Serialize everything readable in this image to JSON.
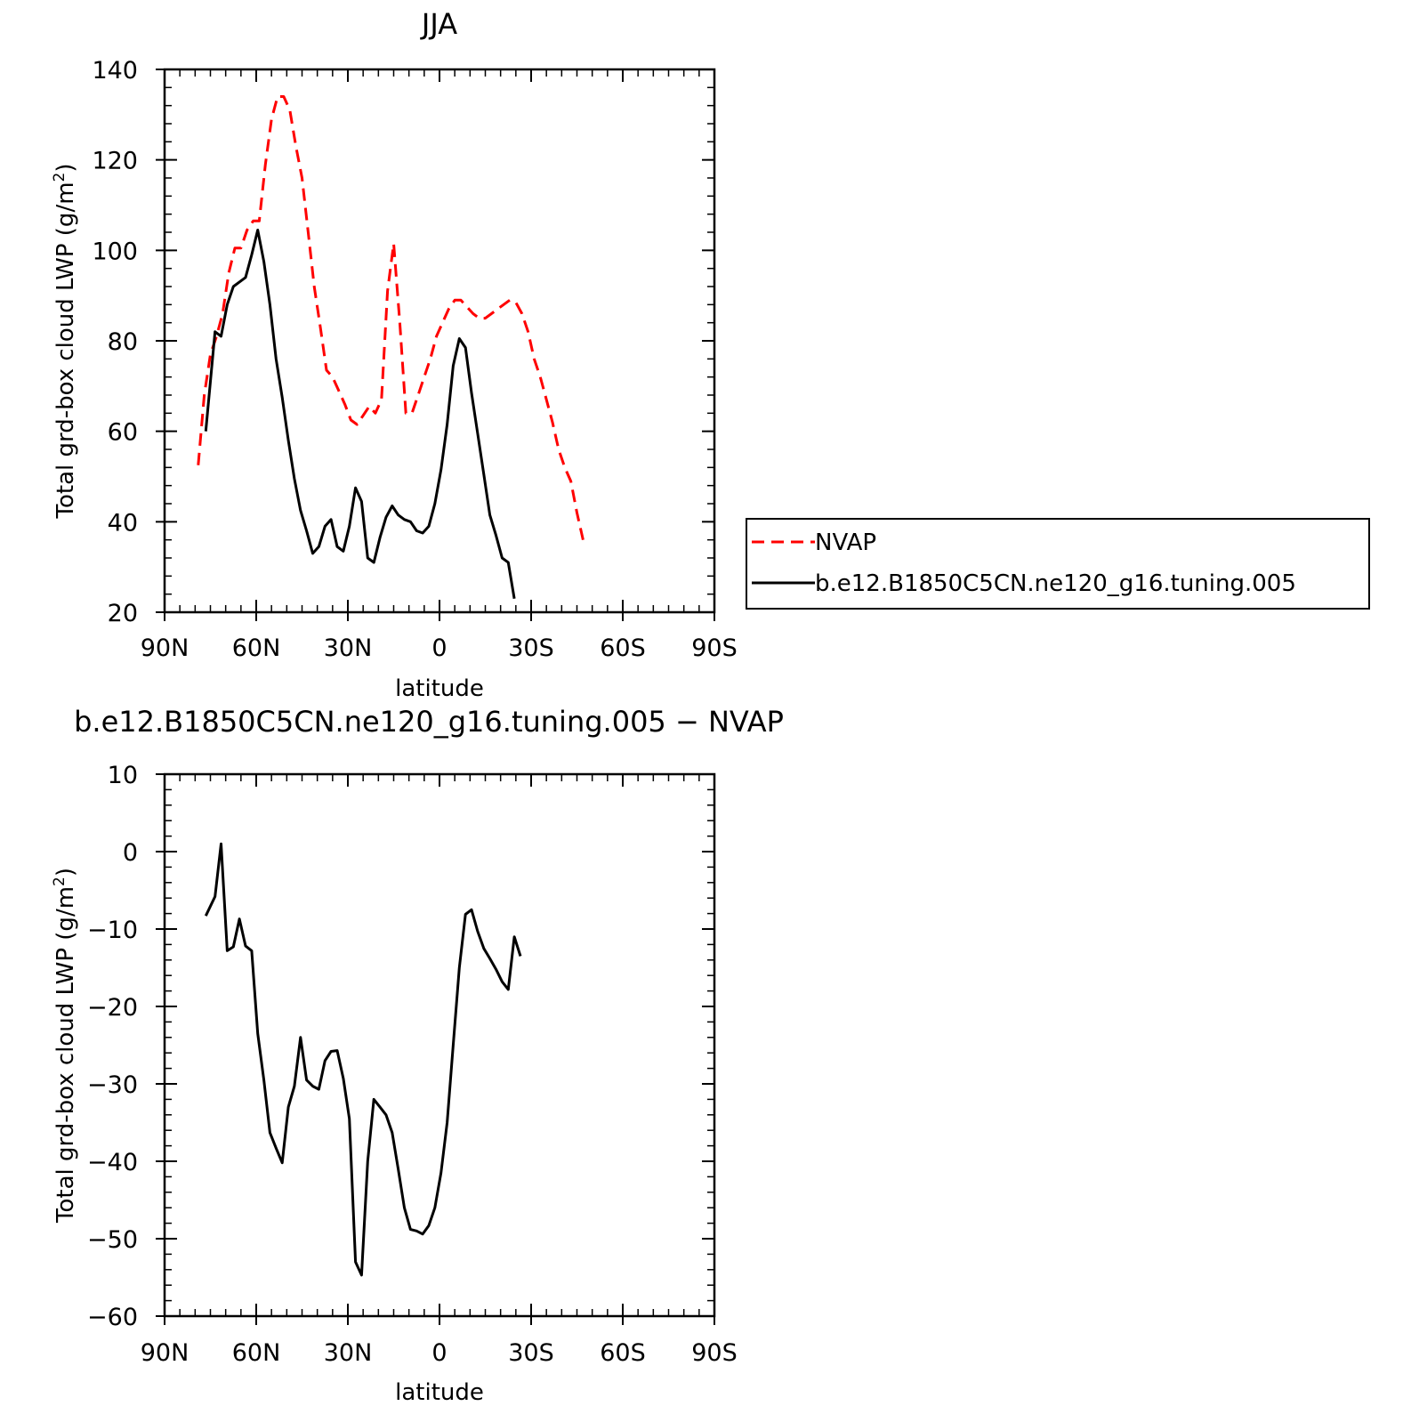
{
  "chart_data": [
    {
      "type": "line",
      "title": "JJA",
      "xlabel": "latitude",
      "ylabel": "Total grd-box cloud LWP (g/m²)",
      "ylabel_main": "Total grd-box cloud LWP (g/m",
      "ylabel_sup": "2",
      "ylabel_close": ")",
      "xlim": [
        90,
        -90
      ],
      "ylim": [
        20,
        140
      ],
      "x_ticks": [
        {
          "v": 90,
          "label": "90N"
        },
        {
          "v": 60,
          "label": "60N"
        },
        {
          "v": 30,
          "label": "30N"
        },
        {
          "v": 0,
          "label": "0"
        },
        {
          "v": -30,
          "label": "30S"
        },
        {
          "v": -60,
          "label": "60S"
        },
        {
          "v": -90,
          "label": "90S"
        }
      ],
      "y_ticks": [
        {
          "v": 20,
          "label": "20"
        },
        {
          "v": 40,
          "label": "40"
        },
        {
          "v": 60,
          "label": "60"
        },
        {
          "v": 80,
          "label": "80"
        },
        {
          "v": 100,
          "label": "100"
        },
        {
          "v": 120,
          "label": "120"
        },
        {
          "v": 140,
          "label": "140"
        }
      ],
      "grid": false,
      "legend": "right, outside plot",
      "series": [
        {
          "name": "NVAP",
          "color": "#ff0000",
          "dash": true,
          "points": [
            [
              79,
              52.5
            ],
            [
              77,
              68
            ],
            [
              75,
              77
            ],
            [
              73,
              81
            ],
            [
              71,
              86
            ],
            [
              69,
              95
            ],
            [
              67,
              100.5
            ],
            [
              65,
              100.5
            ],
            [
              63,
              104.5
            ],
            [
              61,
              106.5
            ],
            [
              59,
              106.5
            ],
            [
              57,
              119
            ],
            [
              55,
              129
            ],
            [
              53,
              134
            ],
            [
              51,
              134
            ],
            [
              49,
              131
            ],
            [
              47,
              123
            ],
            [
              45,
              116
            ],
            [
              43,
              104
            ],
            [
              41,
              92
            ],
            [
              39,
              83
            ],
            [
              37,
              73.5
            ],
            [
              35,
              72
            ],
            [
              33,
              69
            ],
            [
              31,
              66
            ],
            [
              29,
              62.5
            ],
            [
              27,
              61.5
            ],
            [
              25,
              63.5
            ],
            [
              23,
              65.5
            ],
            [
              21,
              64
            ],
            [
              19,
              67
            ],
            [
              17,
              91
            ],
            [
              15,
              101.5
            ],
            [
              13,
              84
            ],
            [
              11,
              64
            ],
            [
              9,
              64
            ],
            [
              7,
              68
            ],
            [
              5,
              72
            ],
            [
              3,
              76
            ],
            [
              1,
              81
            ],
            [
              -1,
              84
            ],
            [
              -3,
              87
            ],
            [
              -5,
              89
            ],
            [
              -7,
              89
            ],
            [
              -9,
              87.5
            ],
            [
              -11,
              86
            ],
            [
              -13,
              85
            ],
            [
              -15,
              85
            ],
            [
              -17,
              86
            ],
            [
              -19,
              87
            ],
            [
              -21,
              88
            ],
            [
              -23,
              89
            ],
            [
              -25,
              88.5
            ],
            [
              -27,
              86
            ],
            [
              -29,
              82
            ],
            [
              -31,
              76
            ],
            [
              -33,
              72
            ],
            [
              -35,
              67
            ],
            [
              -37,
              62
            ],
            [
              -39,
              56
            ],
            [
              -41,
              52
            ],
            [
              -43,
              49
            ],
            [
              -45,
              42
            ],
            [
              -47,
              36
            ]
          ]
        },
        {
          "name": "b.e12.B1850C5CN.ne120_g16.tuning.005",
          "color": "#000000",
          "dash": false,
          "points": [
            [
              76.5,
              60
            ],
            [
              73.5,
              82
            ],
            [
              71.5,
              81
            ],
            [
              69.5,
              88
            ],
            [
              67.5,
              92
            ],
            [
              65.5,
              93
            ],
            [
              63.5,
              94
            ],
            [
              61.5,
              99
            ],
            [
              59.5,
              104.5
            ],
            [
              57.5,
              97.5
            ],
            [
              55.5,
              88
            ],
            [
              53.5,
              76
            ],
            [
              51.5,
              67.5
            ],
            [
              49.5,
              58
            ],
            [
              47.5,
              49.5
            ],
            [
              45.5,
              42.5
            ],
            [
              43.5,
              38
            ],
            [
              41.5,
              33
            ],
            [
              39.5,
              34.5
            ],
            [
              37.5,
              39
            ],
            [
              35.5,
              40.5
            ],
            [
              33.5,
              34.5
            ],
            [
              31.5,
              33.5
            ],
            [
              29.5,
              39
            ],
            [
              27.5,
              47.5
            ],
            [
              25.5,
              44.5
            ],
            [
              23.5,
              32
            ],
            [
              21.5,
              31
            ],
            [
              19.5,
              36.5
            ],
            [
              17.5,
              41
            ],
            [
              15.5,
              43.5
            ],
            [
              13.5,
              41.5
            ],
            [
              11.5,
              40.5
            ],
            [
              9.5,
              40
            ],
            [
              7.5,
              38
            ],
            [
              5.5,
              37.5
            ],
            [
              3.5,
              39
            ],
            [
              1.5,
              44
            ],
            [
              -0.5,
              51.5
            ],
            [
              -2.5,
              61.5
            ],
            [
              -4.5,
              74.5
            ],
            [
              -6.5,
              80.5
            ],
            [
              -8.5,
              78.5
            ],
            [
              -10.5,
              68.5
            ],
            [
              -12.5,
              59.5
            ],
            [
              -14.5,
              50.5
            ],
            [
              -16.5,
              41.5
            ],
            [
              -18.5,
              37
            ],
            [
              -20.5,
              32
            ],
            [
              -22.5,
              31
            ],
            [
              -24.5,
              23
            ]
          ]
        }
      ]
    },
    {
      "type": "line",
      "title": "b.e12.B1850C5CN.ne120_g16.tuning.005  −  NVAP",
      "xlabel": "latitude",
      "ylabel": "Total grd-box cloud LWP (g/m²)",
      "ylabel_main": "Total grd-box cloud LWP (g/m",
      "ylabel_sup": "2",
      "ylabel_close": ")",
      "xlim": [
        90,
        -90
      ],
      "ylim": [
        -60,
        10
      ],
      "x_ticks": [
        {
          "v": 90,
          "label": "90N"
        },
        {
          "v": 60,
          "label": "60N"
        },
        {
          "v": 30,
          "label": "30N"
        },
        {
          "v": 0,
          "label": "0"
        },
        {
          "v": -30,
          "label": "30S"
        },
        {
          "v": -60,
          "label": "60S"
        },
        {
          "v": -90,
          "label": "90S"
        }
      ],
      "y_ticks": [
        {
          "v": -60,
          "label": "−60"
        },
        {
          "v": -50,
          "label": "−50"
        },
        {
          "v": -40,
          "label": "−40"
        },
        {
          "v": -30,
          "label": "−30"
        },
        {
          "v": -20,
          "label": "−20"
        },
        {
          "v": -10,
          "label": "−10"
        },
        {
          "v": 0,
          "label": "0"
        },
        {
          "v": 10,
          "label": "10"
        }
      ],
      "grid": false,
      "series": [
        {
          "color": "#000000",
          "dash": false,
          "points": [
            [
              76.5,
              -8.3
            ],
            [
              73.5,
              -5.8
            ],
            [
              71.5,
              1
            ],
            [
              69.5,
              -12.8
            ],
            [
              67.5,
              -12.3
            ],
            [
              65.5,
              -8.7
            ],
            [
              63.5,
              -12.2
            ],
            [
              61.5,
              -12.8
            ],
            [
              59.5,
              -23.5
            ],
            [
              57.5,
              -29.5
            ],
            [
              55.5,
              -36.3
            ],
            [
              53.5,
              -38.3
            ],
            [
              51.5,
              -40.2
            ],
            [
              49.5,
              -33
            ],
            [
              47.5,
              -30.3
            ],
            [
              45.5,
              -24
            ],
            [
              43.5,
              -29.5
            ],
            [
              41.5,
              -30.3
            ],
            [
              39.5,
              -30.7
            ],
            [
              37.5,
              -27
            ],
            [
              35.5,
              -25.8
            ],
            [
              33.5,
              -25.7
            ],
            [
              31.5,
              -29.3
            ],
            [
              29.5,
              -34.5
            ],
            [
              27.5,
              -53
            ],
            [
              25.5,
              -54.7
            ],
            [
              23.5,
              -40
            ],
            [
              21.5,
              -32
            ],
            [
              19.5,
              -33
            ],
            [
              17.5,
              -34
            ],
            [
              15.5,
              -36.3
            ],
            [
              13.5,
              -41
            ],
            [
              11.5,
              -46
            ],
            [
              9.5,
              -48.8
            ],
            [
              7.5,
              -49
            ],
            [
              5.5,
              -49.4
            ],
            [
              3.5,
              -48.3
            ],
            [
              1.5,
              -46
            ],
            [
              -0.5,
              -41.5
            ],
            [
              -2.5,
              -35
            ],
            [
              -4.5,
              -25
            ],
            [
              -6.5,
              -15
            ],
            [
              -8.5,
              -8.1
            ],
            [
              -10.5,
              -7.5
            ],
            [
              -12.5,
              -10.3
            ],
            [
              -14.5,
              -12.5
            ],
            [
              -16.5,
              -13.8
            ],
            [
              -18.5,
              -15.2
            ],
            [
              -20.5,
              -16.8
            ],
            [
              -22.5,
              -17.8
            ],
            [
              -24.5,
              -11
            ],
            [
              -26.5,
              -13.5
            ]
          ]
        }
      ]
    }
  ]
}
